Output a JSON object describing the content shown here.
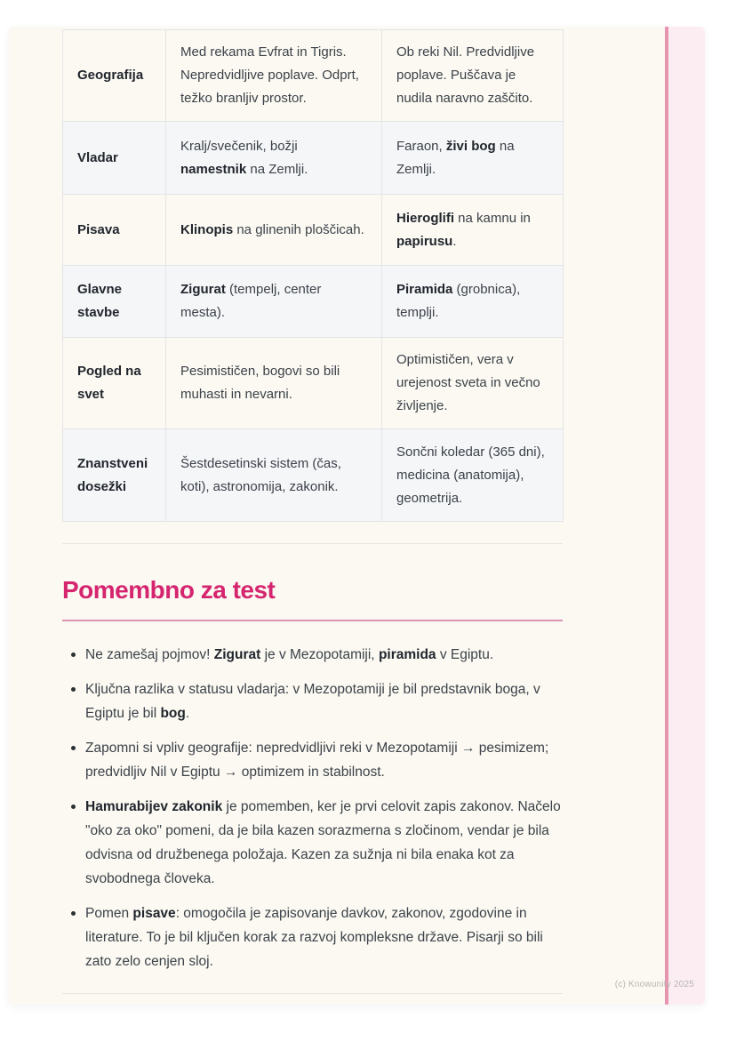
{
  "colors": {
    "accent": "#d6256f",
    "title-underline": "#dd93b4",
    "stripe-line": "#e794b1",
    "stripe-fill": "#fcedf2",
    "page-bg": "#fbf9f2",
    "shaded-row": "#f5f6f8"
  },
  "table": {
    "rows": [
      {
        "label": "Geografija",
        "meso": [
          {
            "t": "Med rekama Evfrat in Tigris. Nepredvidljive poplave. Odprt, težko branljiv prostor."
          }
        ],
        "egypt": [
          {
            "t": "Ob reki Nil. Predvidljive poplave. Puščava je nudila naravno zaščito."
          }
        ]
      },
      {
        "label": "Vladar",
        "meso": [
          {
            "t": "Kralj/svečenik, božji "
          },
          {
            "t": "namestnik",
            "b": true
          },
          {
            "t": " na Zemlji."
          }
        ],
        "egypt": [
          {
            "t": "Faraon, "
          },
          {
            "t": "živi bog",
            "b": true
          },
          {
            "t": " na Zemlji."
          }
        ]
      },
      {
        "label": "Pisava",
        "meso": [
          {
            "t": "Klinopis",
            "b": true
          },
          {
            "t": " na glinenih ploščicah."
          }
        ],
        "egypt": [
          {
            "t": "Hieroglifi",
            "b": true
          },
          {
            "t": " na kamnu in "
          },
          {
            "t": "papirusu",
            "b": true
          },
          {
            "t": "."
          }
        ]
      },
      {
        "label": "Glavne stavbe",
        "meso": [
          {
            "t": "Zigurat",
            "b": true
          },
          {
            "t": " (tempelj, center mesta)."
          }
        ],
        "egypt": [
          {
            "t": "Piramida",
            "b": true
          },
          {
            "t": " (grobnica), templji."
          }
        ]
      },
      {
        "label": "Pogled na svet",
        "meso": [
          {
            "t": "Pesimističen, bogovi so bili muhasti in nevarni."
          }
        ],
        "egypt": [
          {
            "t": "Optimističen, vera v urejenost sveta in večno življenje."
          }
        ]
      },
      {
        "label": "Znanstveni dosežki",
        "meso": [
          {
            "t": "Šestdesetinski sistem (čas, koti), astronomija, zakonik."
          }
        ],
        "egypt": [
          {
            "t": "Sončni koledar (365 dni), medicina (anatomija), geometrija."
          }
        ]
      }
    ]
  },
  "section": {
    "title": "Pomembno za test",
    "bullets": [
      [
        {
          "t": "Ne zamešaj pojmov! "
        },
        {
          "t": "Zigurat",
          "b": true
        },
        {
          "t": " je v Mezopotamiji, "
        },
        {
          "t": "piramida",
          "b": true
        },
        {
          "t": " v Egiptu."
        }
      ],
      [
        {
          "t": "Ključna razlika v statusu vladarja: v Mezopotamiji je bil predstavnik boga, v Egiptu je bil "
        },
        {
          "t": "bog",
          "b": true
        },
        {
          "t": "."
        }
      ],
      [
        {
          "t": "Zapomni si vpliv geografije: nepredvidljivi reki v Mezopotamiji → pesimizem; predvidljiv Nil v Egiptu → optimizem in stabilnost."
        }
      ],
      [
        {
          "t": "Hamurabijev zakonik",
          "b": true
        },
        {
          "t": " je pomemben, ker je prvi celovit zapis zakonov. Načelo \"oko za oko\" pomeni, da je bila kazen sorazmerna s zločinom, vendar je bila odvisna od družbenega položaja. Kazen za sužnja ni bila enaka kot za svobodnega človeka."
        }
      ],
      [
        {
          "t": "Pomen "
        },
        {
          "t": "pisave",
          "b": true
        },
        {
          "t": ": omogočila je zapisovanje davkov, zakonov, zgodovine in literature. To je bil ključen korak za razvoj kompleksne države. Pisarji so bili zato zelo cenjen sloj."
        }
      ]
    ]
  },
  "footer": {
    "copyright": "(c) Knowunity 2025"
  }
}
